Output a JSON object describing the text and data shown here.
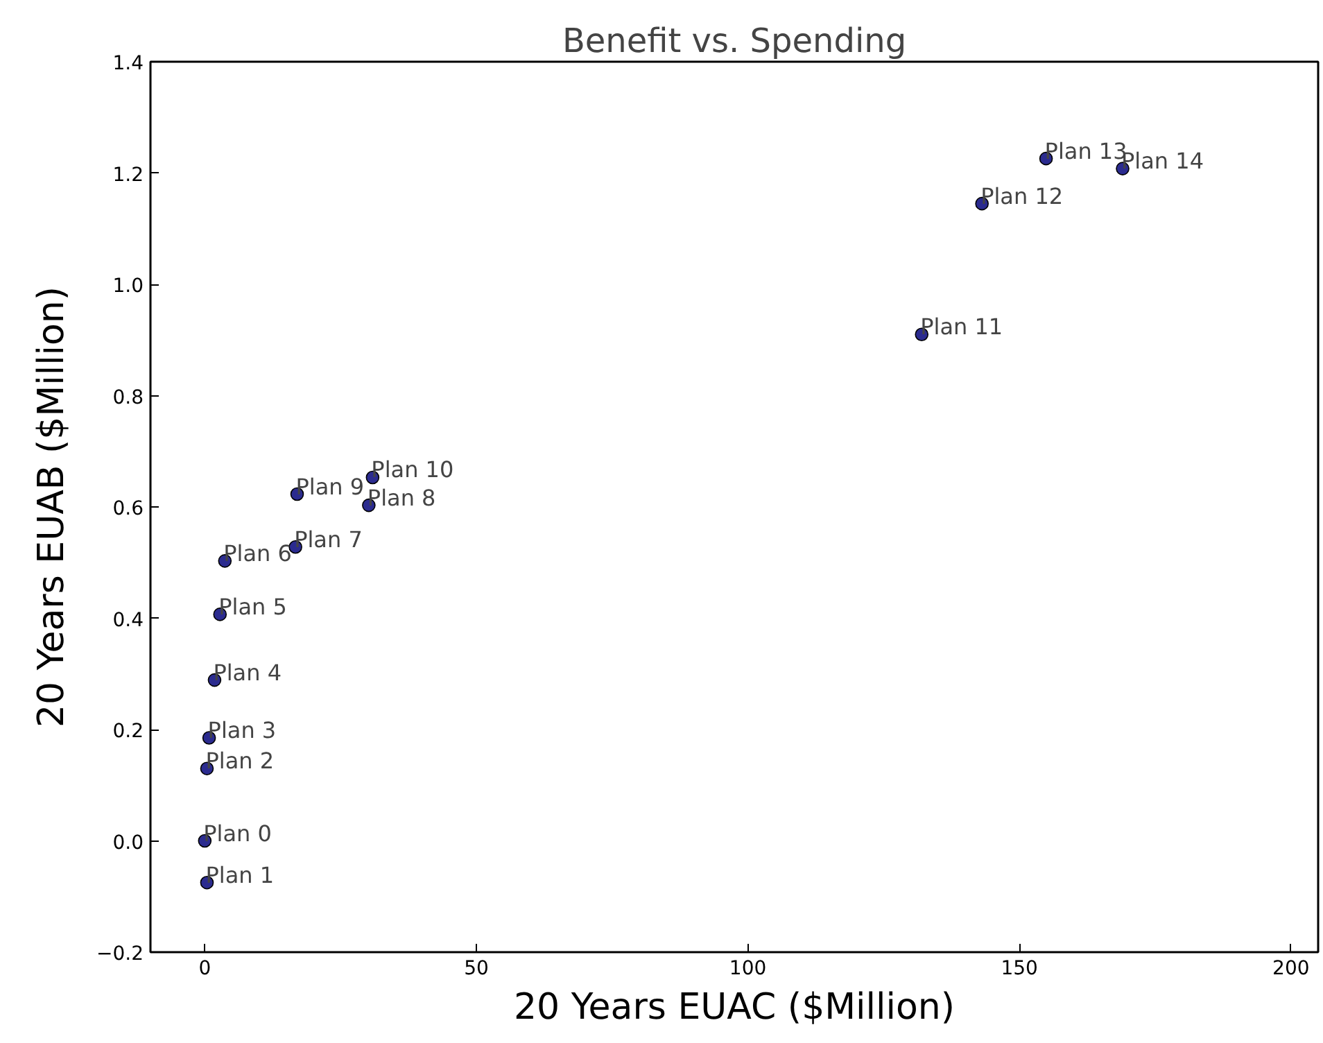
{
  "chart_data": {
    "type": "scatter",
    "title": "Benefit vs. Spending",
    "xlabel": "20 Years EUAC ($Million)",
    "ylabel": "20 Years EUAB ($Million)",
    "x": [
      0,
      0.4,
      0.4,
      0.8,
      1.8,
      2.8,
      3.7,
      16.7,
      30.2,
      17,
      30.9,
      132,
      143.1,
      154.9,
      169
    ],
    "series": [
      {
        "color": "#2b2b8f",
        "values": [
          0,
          -0.075,
          0.13,
          0.185,
          0.289,
          0.407,
          0.503,
          0.528,
          0.603,
          0.623,
          0.653,
          0.91,
          1.145,
          1.226,
          1.208
        ]
      }
    ],
    "marker": "circle",
    "grid": false,
    "xlim": [
      -10,
      205
    ],
    "ylim": [
      -0.2,
      1.4
    ],
    "xticks": [
      0,
      50,
      100,
      150,
      200
    ],
    "yticks": [
      -0.2,
      {
        "value": 0,
        "label": "0.0"
      },
      0.2,
      0.4,
      0.6,
      0.8,
      {
        "value": 1,
        "label": "1.0"
      },
      1.2,
      1.4
    ],
    "annotations": [
      {
        "text": "Plan 0",
        "x": 0,
        "y": 0
      },
      {
        "text": "Plan 1",
        "x": 0.4,
        "y": -0.075
      },
      {
        "text": "Plan 2",
        "x": 0.4,
        "y": 0.13
      },
      {
        "text": "Plan 3",
        "x": 0.8,
        "y": 0.185
      },
      {
        "text": "Plan 4",
        "x": 1.8,
        "y": 0.289
      },
      {
        "text": "Plan 5",
        "x": 2.8,
        "y": 0.407
      },
      {
        "text": "Plan 6",
        "x": 3.7,
        "y": 0.503
      },
      {
        "text": "Plan 7",
        "x": 16.7,
        "y": 0.528
      },
      {
        "text": "Plan 8",
        "x": 30.2,
        "y": 0.603
      },
      {
        "text": "Plan 9",
        "x": 17,
        "y": 0.623
      },
      {
        "text": "Plan 10",
        "x": 30.9,
        "y": 0.653
      },
      {
        "text": "Plan 11",
        "x": 132,
        "y": 0.91
      },
      {
        "text": "Plan 12",
        "x": 143.1,
        "y": 1.145
      },
      {
        "text": "Plan 13",
        "x": 154.9,
        "y": 1.226
      },
      {
        "text": "Plan 14",
        "x": 169,
        "y": 1.208
      }
    ]
  }
}
